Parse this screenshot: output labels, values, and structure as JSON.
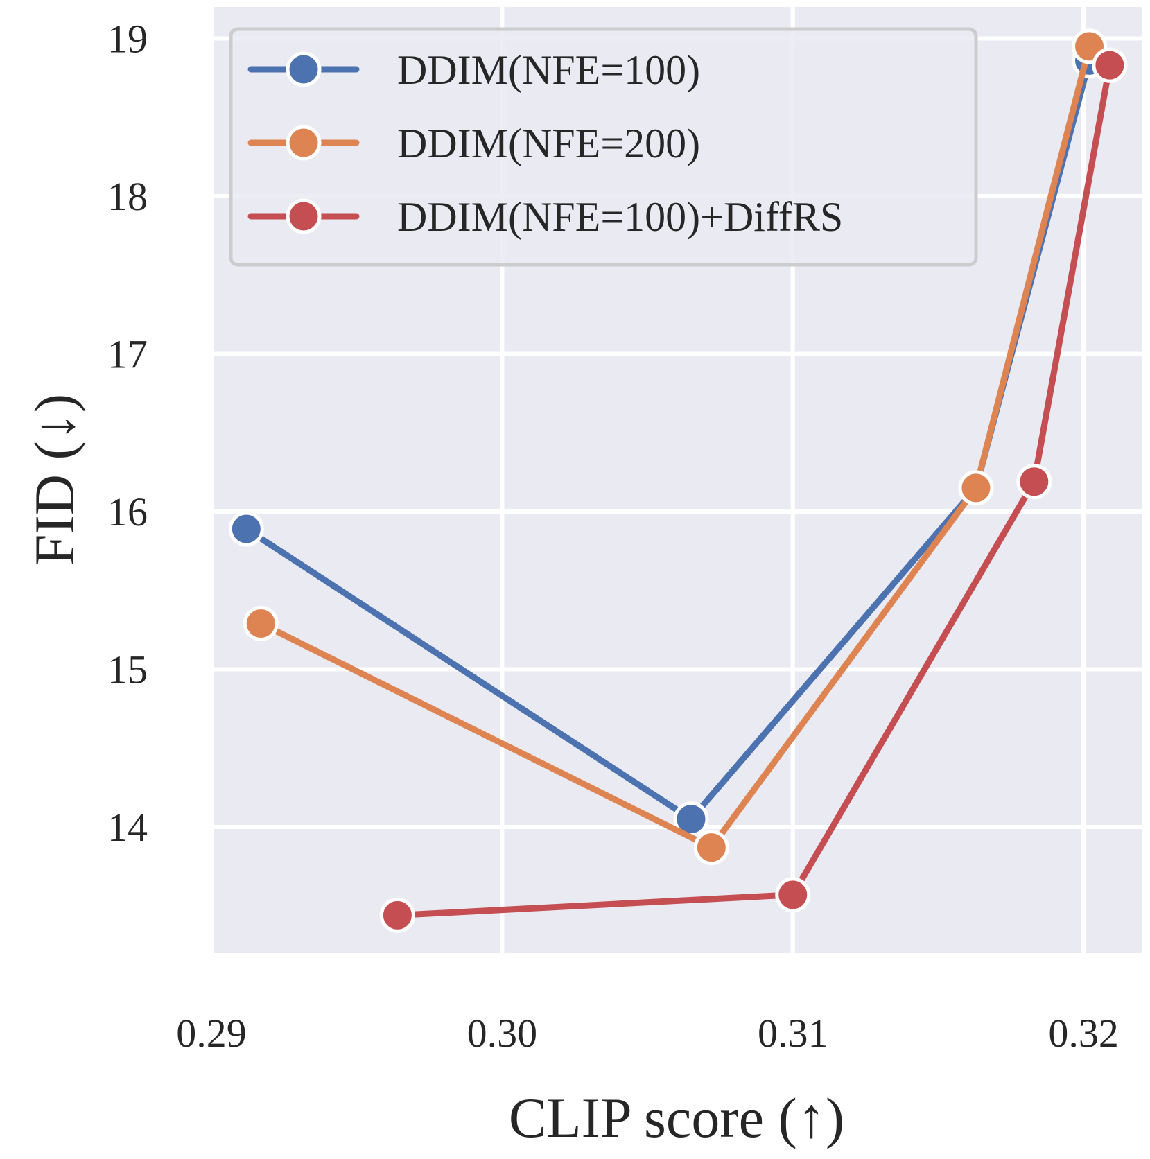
{
  "chart_data": {
    "type": "line",
    "title": "",
    "xlabel": "CLIP score (↑)",
    "ylabel": "FID (↓)",
    "xlim": [
      0.29,
      0.322
    ],
    "ylim": [
      13.2,
      19.2
    ],
    "xticks": [
      0.29,
      0.3,
      0.31,
      0.32
    ],
    "xtick_labels": [
      "0.29",
      "0.30",
      "0.31",
      "0.32"
    ],
    "yticks": [
      14,
      15,
      16,
      17,
      18,
      19
    ],
    "ytick_labels": [
      "14",
      "15",
      "16",
      "17",
      "18",
      "19"
    ],
    "grid": true,
    "legend_position": "top-left",
    "colors": {
      "background": "#eaeaf2",
      "grid": "#ffffff",
      "legend_bg": "#eaeaf2",
      "legend_border": "#cccccc"
    },
    "series": [
      {
        "name": "DDIM(NFE=100)",
        "color": "#4c72b0",
        "x": [
          0.2912,
          0.3065,
          0.3163,
          0.3202
        ],
        "y": [
          15.89,
          14.05,
          16.15,
          18.86
        ]
      },
      {
        "name": "DDIM(NFE=200)",
        "color": "#dd8452",
        "x": [
          0.2917,
          0.3072,
          0.3163,
          0.3202
        ],
        "y": [
          15.29,
          13.87,
          16.15,
          18.95
        ]
      },
      {
        "name": "DDIM(NFE=100)+DiffRS",
        "color": "#c44e52",
        "x": [
          0.2964,
          0.31,
          0.3183,
          0.3209
        ],
        "y": [
          13.44,
          13.57,
          16.19,
          18.83
        ]
      }
    ]
  }
}
